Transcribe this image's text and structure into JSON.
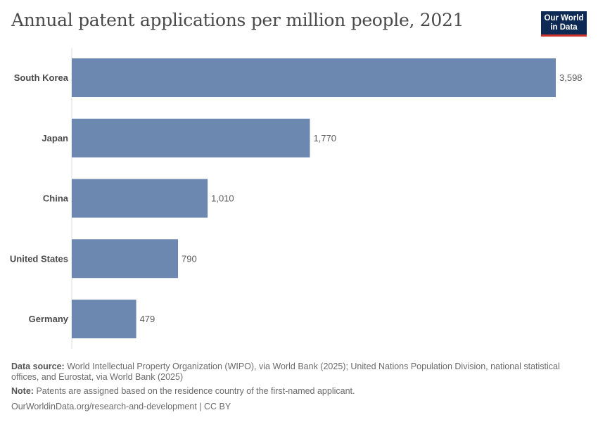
{
  "title": "Annual patent applications per million people, 2021",
  "logo": {
    "line1": "Our World",
    "line2": "in Data"
  },
  "chart_data": {
    "type": "bar",
    "orientation": "horizontal",
    "categories": [
      "South Korea",
      "Japan",
      "China",
      "United States",
      "Germany"
    ],
    "values": [
      3598,
      1770,
      1010,
      790,
      479
    ],
    "value_labels": [
      "3,598",
      "1,770",
      "1,010",
      "790",
      "479"
    ],
    "xlim": [
      0,
      3598
    ],
    "bar_color": "#6d88b0",
    "grid": false
  },
  "footer": {
    "source_label": "Data source:",
    "source_text": "World Intellectual Property Organization (WIPO), via World Bank (2025); United Nations Population Division, national statistical offices, and Eurostat, via World Bank (2025)",
    "note_label": "Note:",
    "note_text": "Patents are assigned based on the residence country of the first-named applicant.",
    "url": "OurWorldinData.org/research-and-development | CC BY"
  }
}
